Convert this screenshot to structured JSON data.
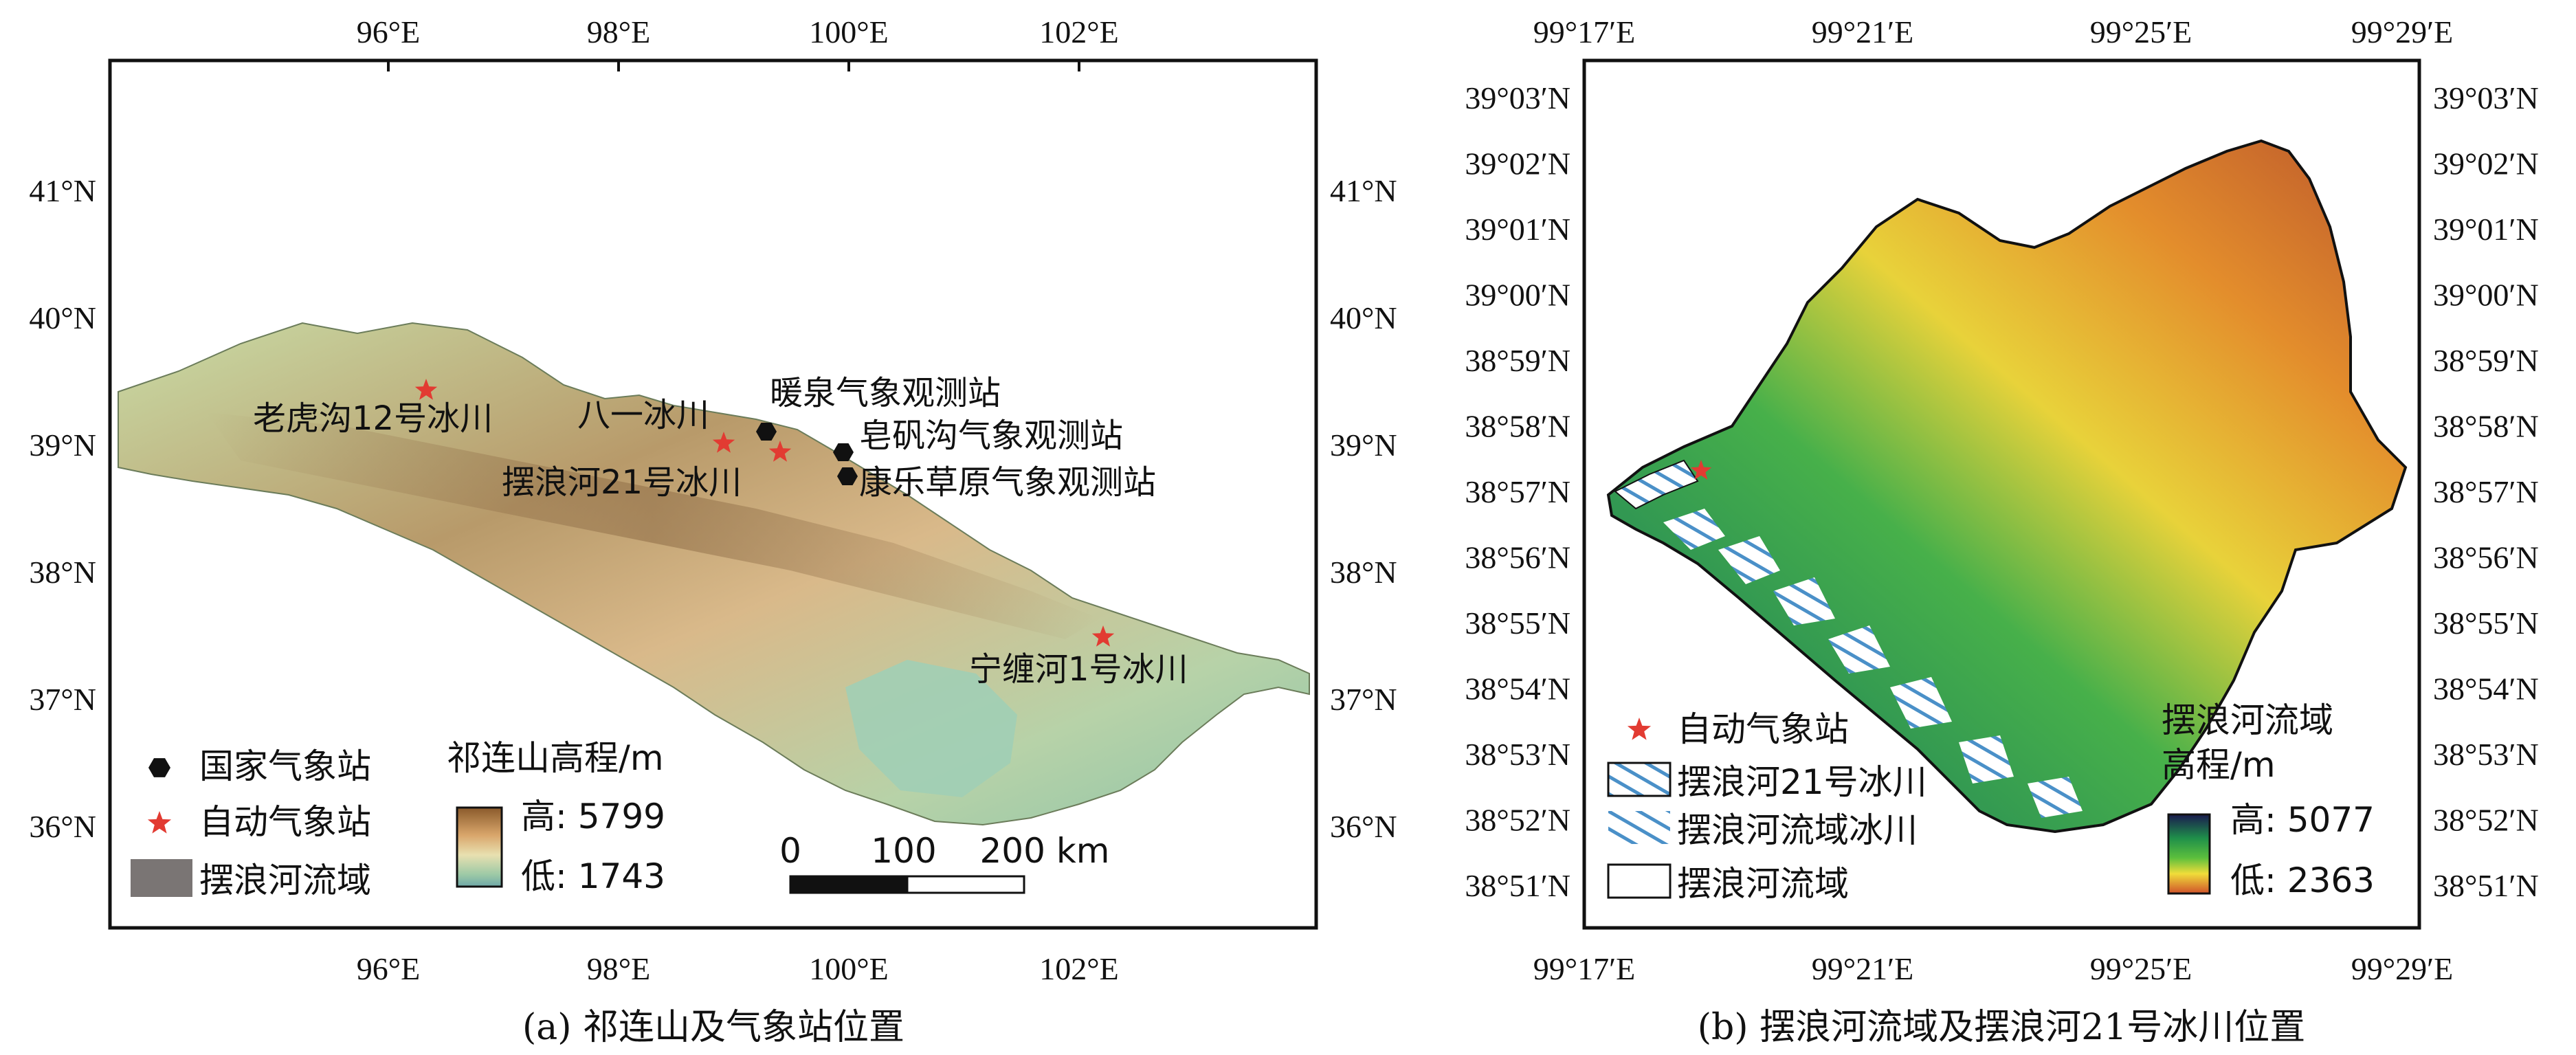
{
  "left_map": {
    "top_lon_ticks": [
      "96°E",
      "98°E",
      "100°E",
      "102°E"
    ],
    "bottom_lon_ticks": [
      "96°E",
      "98°E",
      "100°E",
      "102°E"
    ],
    "lat_ticks": [
      "41°N",
      "40°N",
      "39°N",
      "38°N",
      "37°N",
      "36°N"
    ],
    "station_labels": {
      "laohugou": "老虎沟12号冰川",
      "bayi": "八一冰川",
      "nuanquan": "暖泉气象观测站",
      "zaofangou": "皂矾沟气象观测站",
      "kangle": "康乐草原气象观测站",
      "bailanghe21": "摆浪河21号冰川",
      "ningchanhe": "宁缠河1号冰川"
    },
    "legend": {
      "national_station": "国家气象站",
      "auto_station": "自动气象站",
      "basin": "摆浪河流域"
    },
    "elevation_legend": {
      "title": "祁连山高程/m",
      "high": "高: 5799",
      "low": "低: 1743"
    },
    "scalebar": {
      "labels": [
        "0",
        "100",
        "200 km"
      ]
    },
    "caption": "(a) 祁连山及气象站位置",
    "colors": {
      "national_marker": "#111111",
      "auto_marker": "#e23b32",
      "basin_fill": "#7a7574"
    }
  },
  "right_map": {
    "top_lon_ticks": [
      "99°17′E",
      "99°21′E",
      "99°25′E",
      "99°29′E"
    ],
    "bottom_lon_ticks": [
      "99°17′E",
      "99°21′E",
      "99°25′E",
      "99°29′E"
    ],
    "lat_ticks": [
      "39°03′N",
      "39°02′N",
      "39°01′N",
      "39°00′N",
      "38°59′N",
      "38°58′N",
      "38°57′N",
      "38°56′N",
      "38°55′N",
      "38°54′N",
      "38°53′N",
      "38°52′N",
      "38°51′N"
    ],
    "legend": {
      "auto_station": "自动气象站",
      "glacier21": "摆浪河21号冰川",
      "basin_glaciers": "摆浪河流域冰川",
      "basin": "摆浪河流域"
    },
    "elevation_legend": {
      "title_line1": "摆浪河流域",
      "title_line2": "高程/m",
      "high": "高: 5077",
      "low": "低: 2363"
    },
    "caption": "(b) 摆浪河流域及摆浪河21号冰川位置",
    "colors": {
      "auto_marker": "#e23b32"
    }
  }
}
